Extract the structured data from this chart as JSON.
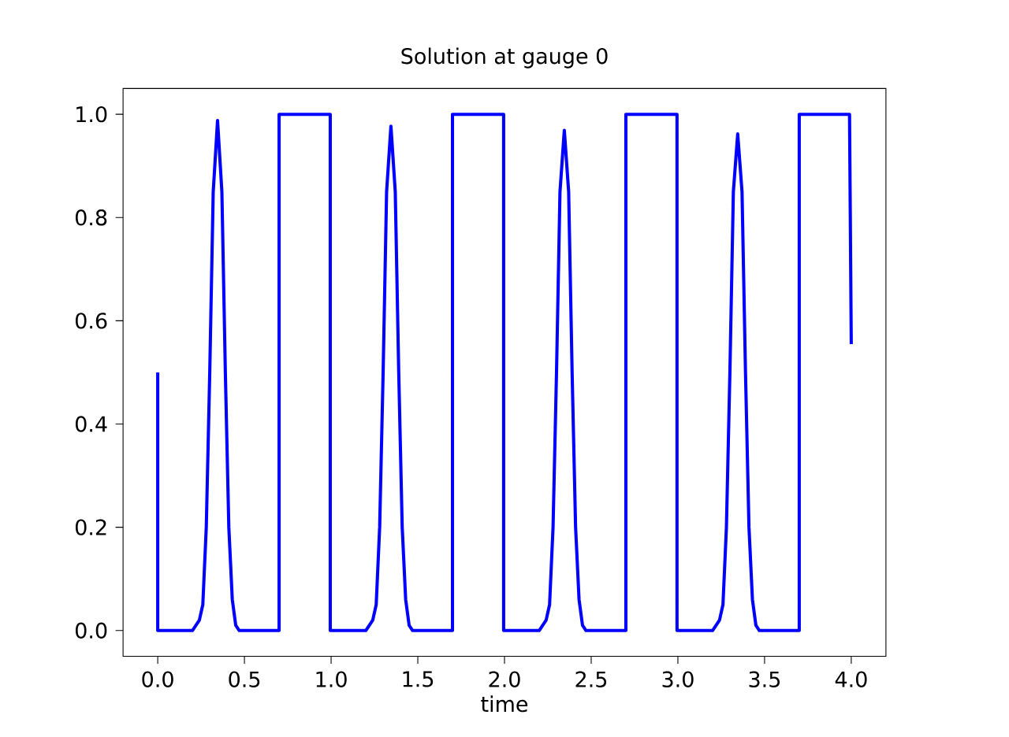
{
  "chart_data": {
    "type": "line",
    "title": "Solution at gauge 0",
    "xlabel": "time",
    "x": [
      0,
      0,
      0.2,
      0.24,
      0.26,
      0.28,
      0.3,
      0.32,
      0.345,
      0.37,
      0.39,
      0.41,
      0.43,
      0.45,
      0.47,
      0.7,
      0.7,
      0.995,
      0.995,
      1.2,
      1.24,
      1.26,
      1.28,
      1.3,
      1.32,
      1.345,
      1.37,
      1.39,
      1.41,
      1.43,
      1.45,
      1.47,
      1.7,
      1.7,
      1.995,
      1.995,
      2.2,
      2.24,
      2.26,
      2.28,
      2.3,
      2.32,
      2.345,
      2.37,
      2.39,
      2.41,
      2.43,
      2.45,
      2.47,
      2.7,
      2.7,
      2.995,
      2.995,
      3.2,
      3.24,
      3.26,
      3.28,
      3.3,
      3.32,
      3.345,
      3.37,
      3.39,
      3.41,
      3.43,
      3.45,
      3.47,
      3.7,
      3.7,
      3.99,
      4.0
    ],
    "series": [
      {
        "color": "#0000ff",
        "values": [
          0.5,
          0,
          0,
          0.02,
          0.05,
          0.2,
          0.5,
          0.85,
          0.988,
          0.85,
          0.5,
          0.2,
          0.06,
          0.01,
          0,
          0,
          1,
          1,
          0,
          0,
          0.02,
          0.05,
          0.2,
          0.5,
          0.85,
          0.977,
          0.85,
          0.5,
          0.2,
          0.06,
          0.01,
          0,
          0,
          1,
          1,
          0,
          0,
          0.02,
          0.05,
          0.2,
          0.5,
          0.85,
          0.969,
          0.85,
          0.5,
          0.2,
          0.06,
          0.01,
          0,
          0,
          1,
          1,
          0,
          0,
          0.02,
          0.05,
          0.2,
          0.5,
          0.85,
          0.962,
          0.85,
          0.5,
          0.2,
          0.06,
          0.01,
          0,
          0,
          1,
          1,
          0.555
        ]
      }
    ],
    "xlim": [
      -0.2,
      4.2
    ],
    "ylim": [
      -0.05,
      1.05
    ],
    "xticks": [
      {
        "value": 0,
        "label": "0.0"
      },
      {
        "value": 0.5,
        "label": "0.5"
      },
      {
        "value": 1,
        "label": "1.0"
      },
      {
        "value": 1.5,
        "label": "1.5"
      },
      {
        "value": 2,
        "label": "2.0"
      },
      {
        "value": 2.5,
        "label": "2.5"
      },
      {
        "value": 3,
        "label": "3.0"
      },
      {
        "value": 3.5,
        "label": "3.5"
      },
      {
        "value": 4,
        "label": "4.0"
      }
    ],
    "yticks": [
      {
        "value": 0,
        "label": "0.0"
      },
      {
        "value": 0.2,
        "label": "0.2"
      },
      {
        "value": 0.4,
        "label": "0.4"
      },
      {
        "value": 0.6,
        "label": "0.6"
      },
      {
        "value": 0.8,
        "label": "0.8"
      },
      {
        "value": 1,
        "label": "1.0"
      }
    ],
    "grid": false,
    "marker": "none",
    "line_style": "solid"
  }
}
